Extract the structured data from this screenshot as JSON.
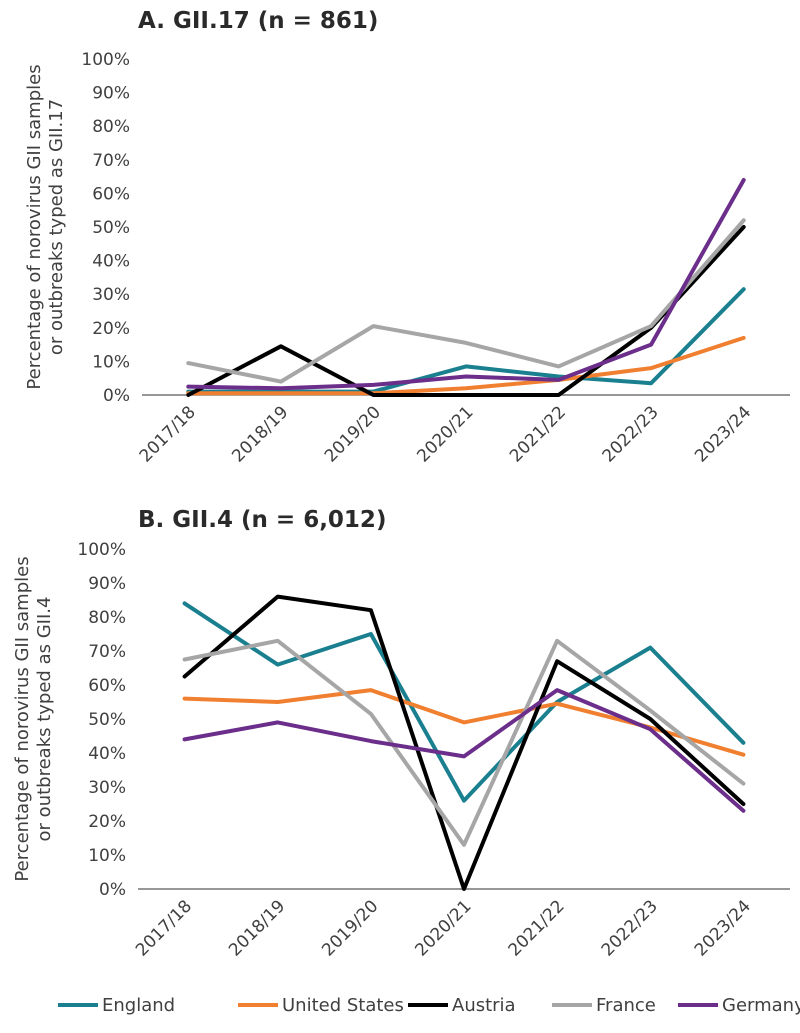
{
  "chart_data": [
    {
      "type": "line",
      "title": "A. GII.17 (n = 861)",
      "ylabel_lines": [
        "Percentage of norovirus GII samples",
        "or outbreaks typed as GII.17"
      ],
      "categories": [
        "2017/18",
        "2018/19",
        "2019/20",
        "2020/21",
        "2021/22",
        "2022/23",
        "2023/24"
      ],
      "ylim": [
        0,
        100
      ],
      "yticks": [
        "0%",
        "10%",
        "20%",
        "30%",
        "40%",
        "50%",
        "60%",
        "70%",
        "80%",
        "90%",
        "100%"
      ],
      "series": [
        {
          "name": "England",
          "color": "#1a7f8e",
          "values": [
            1,
            1,
            1,
            8.5,
            5.5,
            3.5,
            31.5
          ]
        },
        {
          "name": "United States",
          "color": "#f07f30",
          "values": [
            0.5,
            0.5,
            0.5,
            2,
            4.5,
            8,
            17
          ]
        },
        {
          "name": "Austria",
          "color": "#000000",
          "values": [
            0,
            14.5,
            0,
            0,
            0,
            20,
            50
          ]
        },
        {
          "name": "France",
          "color": "#a6a6a6",
          "values": [
            9.5,
            4,
            20.5,
            15.5,
            8.5,
            20.5,
            52
          ]
        },
        {
          "name": "Germany",
          "color": "#6b2e8a",
          "values": [
            2.5,
            2,
            3,
            5.5,
            4.5,
            15,
            64
          ]
        }
      ]
    },
    {
      "type": "line",
      "title": "B. GII.4 (n = 6,012)",
      "ylabel_lines": [
        "Percentage of norovirus GII samples",
        "or outbreaks typed as GII.4"
      ],
      "categories": [
        "2017/18",
        "2018/19",
        "2019/20",
        "2020/21",
        "2021/22",
        "2022/23",
        "2023/24"
      ],
      "ylim": [
        0,
        100
      ],
      "yticks": [
        "0%",
        "10%",
        "20%",
        "30%",
        "40%",
        "50%",
        "60%",
        "70%",
        "80%",
        "90%",
        "100%"
      ],
      "series": [
        {
          "name": "England",
          "color": "#1a7f8e",
          "values": [
            84,
            66,
            75,
            26,
            55,
            71,
            43
          ]
        },
        {
          "name": "United States",
          "color": "#f07f30",
          "values": [
            56,
            55,
            58.5,
            49,
            54.5,
            47.5,
            39.5
          ]
        },
        {
          "name": "Austria",
          "color": "#000000",
          "values": [
            62.5,
            86,
            82,
            0,
            67,
            50,
            25
          ]
        },
        {
          "name": "France",
          "color": "#a6a6a6",
          "values": [
            67.5,
            73,
            51.5,
            13,
            73,
            52.5,
            31
          ]
        },
        {
          "name": "Germany",
          "color": "#6b2e8a",
          "values": [
            44,
            49,
            43.5,
            39,
            58.5,
            47,
            23
          ]
        }
      ]
    }
  ],
  "legend": [
    {
      "label": "England",
      "color": "#1a7f8e"
    },
    {
      "label": "United States",
      "color": "#f07f30"
    },
    {
      "label": "Austria",
      "color": "#000000"
    },
    {
      "label": "France",
      "color": "#a6a6a6"
    },
    {
      "label": "Germany",
      "color": "#6b2e8a"
    }
  ]
}
